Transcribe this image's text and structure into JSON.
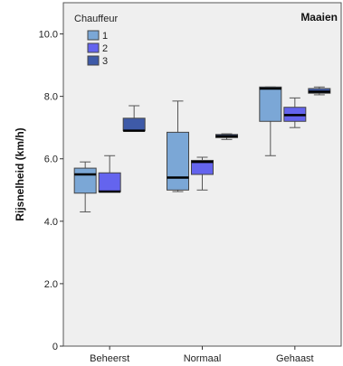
{
  "chart_data": {
    "type": "boxplot",
    "panel_title": "Maaien",
    "ylabel": "Rijsnelheid (km/h)",
    "ylim": [
      0,
      11
    ],
    "yticks": [
      {
        "value": 0,
        "label": "0"
      },
      {
        "value": 2,
        "label": "2.0"
      },
      {
        "value": 4,
        "label": "4.0"
      },
      {
        "value": 6,
        "label": "6.0"
      },
      {
        "value": 8,
        "label": "8.0"
      },
      {
        "value": 10,
        "label": "10.0"
      }
    ],
    "categories": [
      "Beheerst",
      "Normaal",
      "Gehaast"
    ],
    "legend": {
      "title": "Chauffeur",
      "position": "top-left"
    },
    "background": "#efefef",
    "series": [
      {
        "name": "1",
        "color": "#7ba7d6",
        "boxes": [
          {
            "min": 4.3,
            "q1": 4.9,
            "median": 5.5,
            "q3": 5.7,
            "max": 5.9
          },
          {
            "min": 4.95,
            "q1": 5.0,
            "median": 5.4,
            "q3": 6.85,
            "max": 7.85
          },
          {
            "min": 6.1,
            "q1": 7.2,
            "median": 8.25,
            "q3": 8.3,
            "max": 8.3
          }
        ]
      },
      {
        "name": "2",
        "color": "#6464ee",
        "boxes": [
          {
            "min": 4.95,
            "q1": 4.95,
            "median": 4.95,
            "q3": 5.55,
            "max": 6.1
          },
          {
            "min": 5.0,
            "q1": 5.5,
            "median": 5.9,
            "q3": 5.95,
            "max": 6.05
          },
          {
            "min": 7.0,
            "q1": 7.2,
            "median": 7.4,
            "q3": 7.65,
            "max": 7.95
          }
        ]
      },
      {
        "name": "3",
        "color": "#3e5aa8",
        "boxes": [
          {
            "min": 6.9,
            "q1": 6.9,
            "median": 6.9,
            "q3": 7.3,
            "max": 7.7
          },
          {
            "min": 6.62,
            "q1": 6.68,
            "median": 6.72,
            "q3": 6.78,
            "max": 6.8
          },
          {
            "min": 8.05,
            "q1": 8.1,
            "median": 8.15,
            "q3": 8.25,
            "max": 8.3
          }
        ]
      }
    ]
  }
}
